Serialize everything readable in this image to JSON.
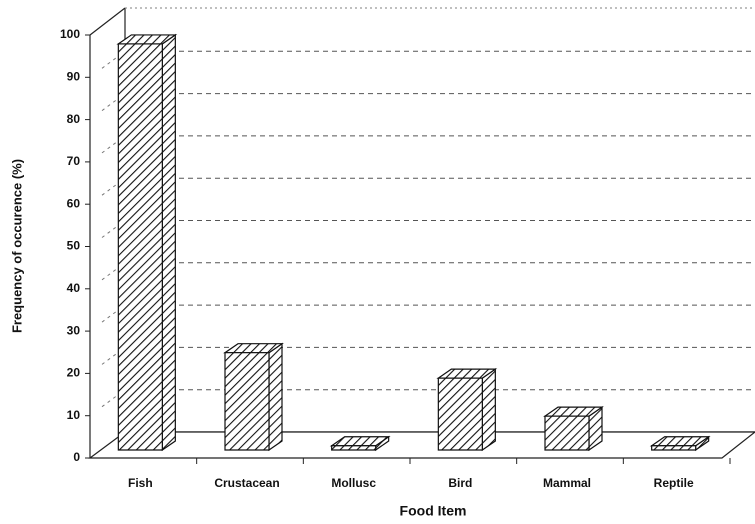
{
  "chart_data": {
    "type": "bar3d",
    "x_label": "Food Item",
    "y_label": "Frequency of occurence (%)",
    "categories": [
      "Fish",
      "Crustacean",
      "Mollusc",
      "Bird",
      "Mammal",
      "Reptile"
    ],
    "values": [
      96,
      23,
      1,
      17,
      8,
      1
    ],
    "color": "#ffffff",
    "ylim": [
      0,
      100
    ],
    "yticks": [
      0,
      10,
      20,
      30,
      40,
      50,
      60,
      70,
      80,
      90,
      100
    ],
    "grid": true
  }
}
